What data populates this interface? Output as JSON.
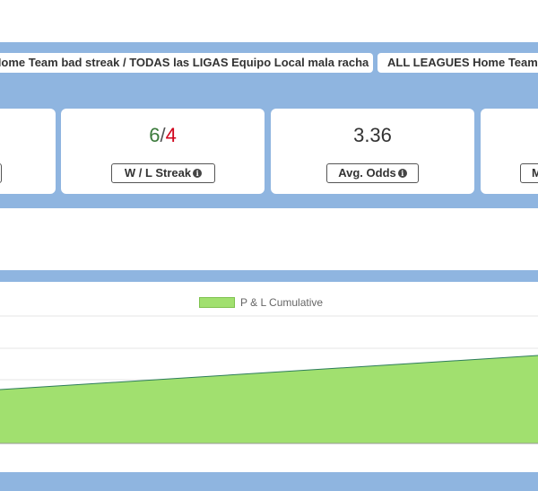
{
  "tabs": [
    "Home Team bad streak / TODAS las LIGAS Equipo Local mala racha",
    "ALL LEAGUES Home Team"
  ],
  "stats": {
    "streak": {
      "wins": "6",
      "separator": "/",
      "losses": "4",
      "label": "W / L Streak"
    },
    "odds": {
      "value": "3.36",
      "label": "Avg. Odds"
    },
    "next_label": "M"
  },
  "info_icon_glyph": "i",
  "colors": {
    "band": "#8fb5e0",
    "win": "#3b7a3b",
    "loss": "#d0021b",
    "area_fill": "#a1e06f",
    "area_line": "#2e7d5b"
  },
  "chart_data": {
    "type": "area",
    "series": [
      {
        "name": "P & L Cumulative"
      }
    ],
    "grid": true,
    "legend_position": "top-center"
  }
}
